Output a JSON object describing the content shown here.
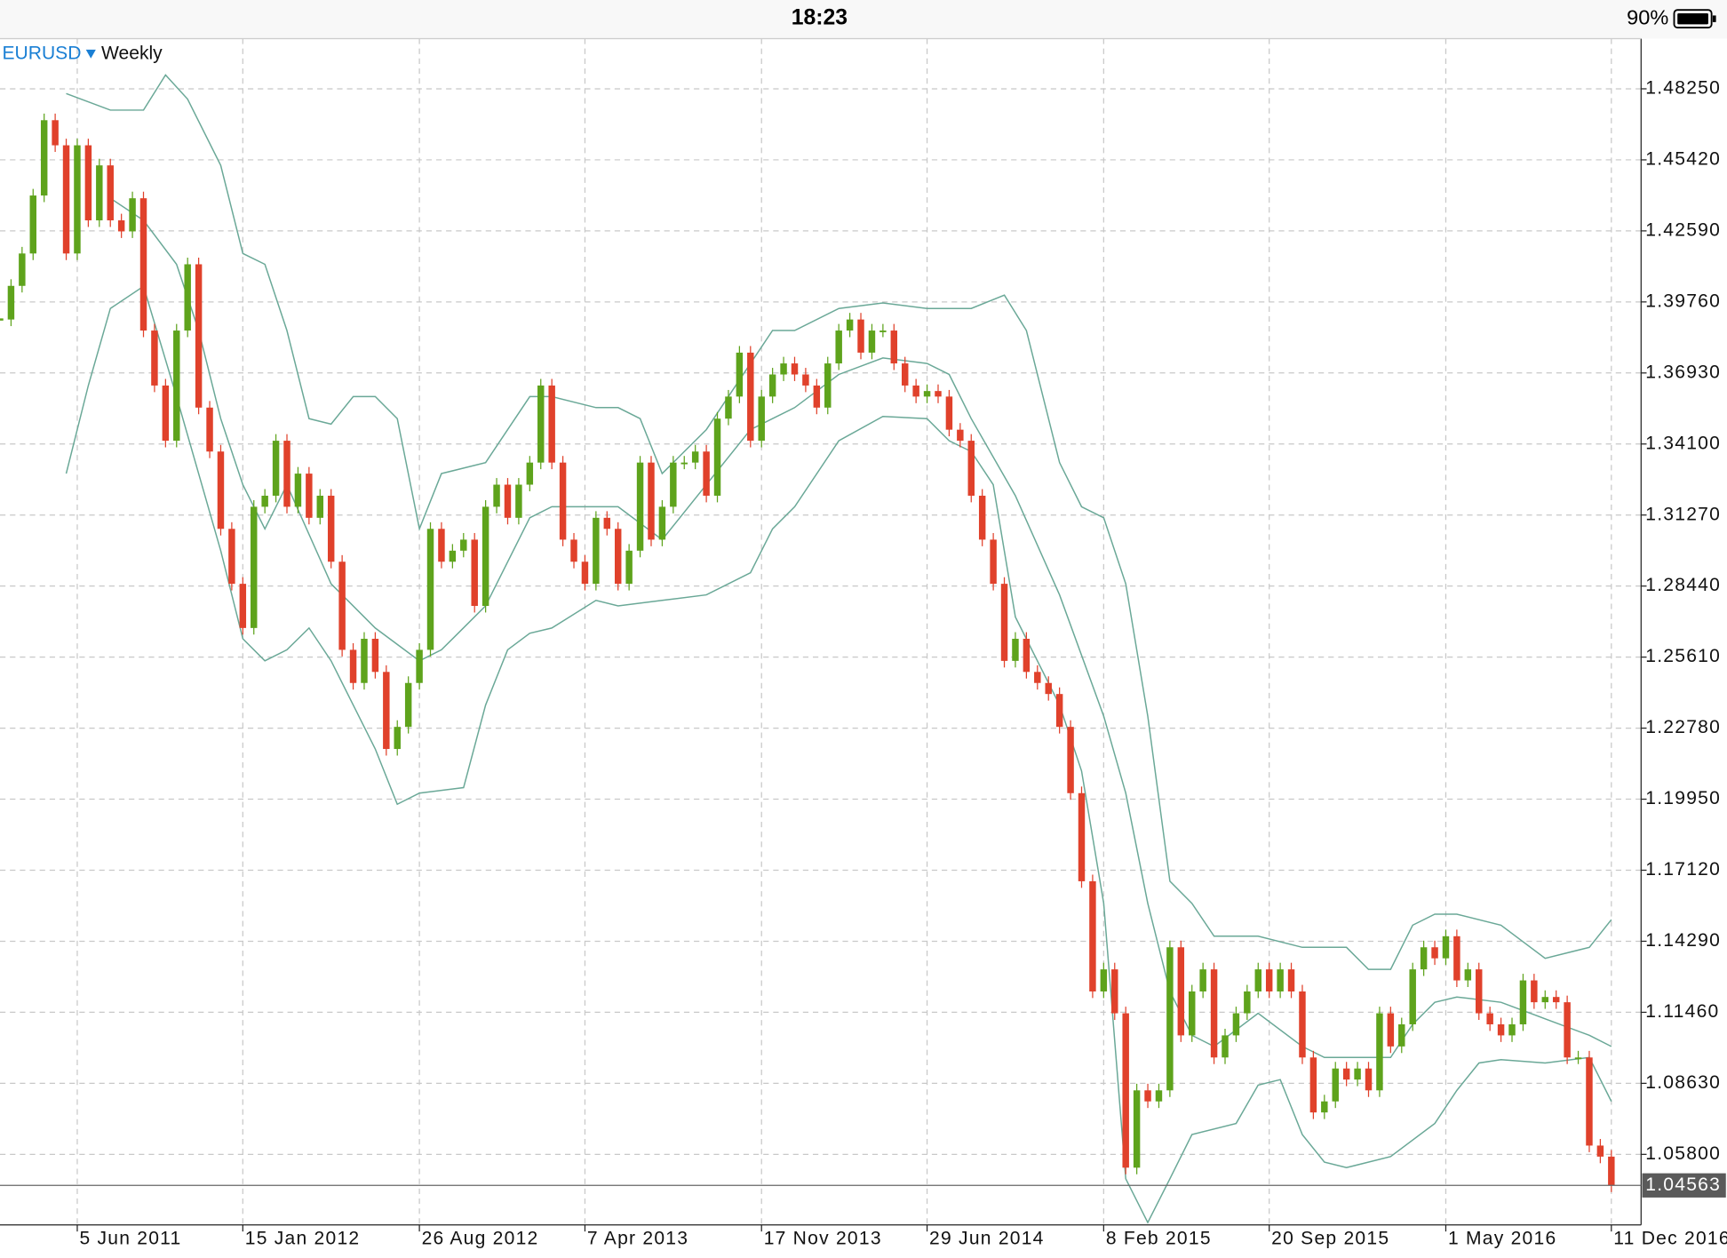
{
  "status_bar": {
    "time": "18:23",
    "battery": "90%"
  },
  "chart_data": {
    "type": "candlestick",
    "symbol": "EURUSD",
    "timeframe": "Weekly",
    "categories": [
      null,
      null,
      null,
      null,
      null,
      null,
      null,
      "5 Jun 2011",
      null,
      null,
      null,
      null,
      null,
      null,
      null,
      null,
      null,
      null,
      null,
      null,
      null,
      null,
      "15 Jan 2012",
      null,
      null,
      null,
      null,
      null,
      null,
      null,
      null,
      null,
      null,
      null,
      null,
      null,
      null,
      null,
      "26 Aug 2012",
      null,
      null,
      null,
      null,
      null,
      null,
      null,
      null,
      null,
      null,
      null,
      null,
      null,
      null,
      "7 Apr 2013",
      null,
      null,
      null,
      null,
      null,
      null,
      null,
      null,
      null,
      null,
      null,
      null,
      null,
      null,
      null,
      "17 Nov 2013",
      null,
      null,
      null,
      null,
      null,
      null,
      null,
      null,
      null,
      null,
      null,
      null,
      null,
      null,
      "29 Jun 2014",
      null,
      null,
      null,
      null,
      null,
      null,
      null,
      null,
      null,
      null,
      null,
      null,
      null,
      null,
      null,
      "8 Feb 2015",
      null,
      null,
      null,
      null,
      null,
      null,
      null,
      null,
      null,
      null,
      null,
      null,
      null,
      null,
      "20 Sep 2015",
      null,
      null,
      null,
      null,
      null,
      null,
      null,
      null,
      null,
      null,
      null,
      null,
      null,
      null,
      null,
      "1 May 2016",
      null,
      null,
      null,
      null,
      null,
      null,
      null,
      null,
      null,
      null,
      null,
      null,
      null,
      null,
      "11 Dec 2016"
    ],
    "values": [
      1.3906,
      1.404,
      1.4169,
      1.44,
      1.47,
      1.46,
      1.4169,
      1.46,
      1.4301,
      1.452,
      1.4301,
      1.4257,
      1.4389,
      1.3862,
      1.3643,
      1.3423,
      1.3862,
      1.4126,
      1.3555,
      1.338,
      1.3072,
      1.2853,
      1.2677,
      1.316,
      1.3204,
      1.3423,
      1.316,
      1.3292,
      1.3116,
      1.3204,
      1.2941,
      1.259,
      1.2458,
      1.2634,
      1.2502,
      1.2195,
      1.2283,
      1.2458,
      1.259,
      1.3072,
      1.2941,
      1.2985,
      1.3029,
      1.2765,
      1.316,
      1.3248,
      1.3116,
      1.3248,
      1.3336,
      1.3643,
      1.3336,
      1.3029,
      1.2941,
      1.2853,
      1.3116,
      1.3072,
      1.2853,
      1.2985,
      1.3336,
      1.3029,
      1.316,
      1.3336,
      1.3336,
      1.338,
      1.3204,
      1.3511,
      1.3599,
      1.3774,
      1.3423,
      1.3599,
      1.3687,
      1.3731,
      1.3687,
      1.3643,
      1.3555,
      1.3731,
      1.3862,
      1.3906,
      1.3774,
      1.3862,
      1.3862,
      1.3731,
      1.3643,
      1.3599,
      1.3621,
      1.3599,
      1.3467,
      1.3423,
      1.3204,
      1.3029,
      1.2853,
      1.2546,
      1.2634,
      1.2502,
      1.2458,
      1.2414,
      1.2283,
      1.2019,
      1.1668,
      1.1229,
      1.1317,
      1.1142,
      1.0527,
      1.0835,
      1.0791,
      1.0835,
      1.1405,
      1.1054,
      1.1229,
      1.1317,
      1.0966,
      1.1054,
      1.1142,
      1.1229,
      1.1317,
      1.1229,
      1.1317,
      1.1229,
      1.0966,
      1.0747,
      1.0791,
      1.0922,
      1.0878,
      1.0922,
      1.0835,
      1.1142,
      1.101,
      1.1098,
      1.1317,
      1.1405,
      1.1361,
      1.1449,
      1.1273,
      1.1317,
      1.1142,
      1.1098,
      1.1054,
      1.1098,
      1.1273,
      1.1186,
      1.1207,
      1.1186,
      1.0966,
      1.0966,
      1.0615,
      1.0571,
      1.0456
    ],
    "up_color": "#5ea31c",
    "down_color": "#e0412b",
    "bands": [
      {
        "color": "#6aa897",
        "x": [
          6,
          10,
          13,
          15,
          17,
          20,
          22,
          24,
          26,
          28,
          30,
          32,
          34,
          36,
          38,
          40,
          44,
          48,
          50,
          54,
          56,
          58,
          60,
          64,
          68,
          70,
          72,
          76,
          80,
          84,
          88,
          91,
          93,
          96,
          98,
          100,
          102,
          104,
          106,
          108,
          110,
          114,
          118,
          122,
          124,
          126,
          128,
          130,
          132,
          136,
          140,
          144,
          146
        ],
        "values": [
          1.4806,
          1.474,
          1.474,
          1.488,
          1.4784,
          1.452,
          1.4169,
          1.4126,
          1.3862,
          1.3511,
          1.3489,
          1.3599,
          1.3599,
          1.3511,
          1.3072,
          1.3292,
          1.3336,
          1.3599,
          1.3599,
          1.3555,
          1.3555,
          1.3511,
          1.3292,
          1.3467,
          1.3731,
          1.3862,
          1.3862,
          1.395,
          1.3972,
          1.395,
          1.395,
          1.4003,
          1.3862,
          1.3336,
          1.316,
          1.3116,
          1.2853,
          1.2326,
          1.1668,
          1.158,
          1.1449,
          1.1449,
          1.1405,
          1.1405,
          1.1317,
          1.1317,
          1.1493,
          1.1537,
          1.1537,
          1.1493,
          1.1361,
          1.1405,
          1.1515
        ]
      },
      {
        "color": "#6aa897",
        "x": [
          10,
          13,
          16,
          18,
          20,
          22,
          24,
          26,
          30,
          34,
          38,
          40,
          44,
          48,
          50,
          54,
          56,
          60,
          64,
          68,
          70,
          72,
          76,
          80,
          84,
          86,
          88,
          92,
          96,
          100,
          102,
          104,
          106,
          108,
          110,
          114,
          118,
          120,
          124,
          126,
          128,
          130,
          132,
          136,
          140,
          144,
          146
        ],
        "values": [
          1.4389,
          1.4301,
          1.4126,
          1.3862,
          1.3511,
          1.3248,
          1.3072,
          1.3248,
          1.2853,
          1.2677,
          1.2546,
          1.259,
          1.2765,
          1.3116,
          1.316,
          1.316,
          1.316,
          1.3029,
          1.3248,
          1.3467,
          1.3511,
          1.3555,
          1.3687,
          1.3753,
          1.3731,
          1.3687,
          1.3511,
          1.3204,
          1.2809,
          1.2326,
          1.2019,
          1.158,
          1.1229,
          1.1054,
          1.101,
          1.1142,
          1.101,
          1.0966,
          1.0966,
          1.0966,
          1.1098,
          1.1186,
          1.1207,
          1.1186,
          1.112,
          1.1054,
          1.101
        ]
      },
      {
        "color": "#6aa897",
        "x": [
          6,
          8,
          10,
          13,
          16,
          20,
          22,
          24,
          26,
          28,
          30,
          32,
          34,
          36,
          38,
          42,
          44,
          46,
          48,
          50,
          54,
          56,
          60,
          64,
          68,
          70,
          72,
          76,
          80,
          84,
          86,
          88,
          90,
          92,
          96,
          98,
          100,
          102,
          104,
          106,
          108,
          112,
          114,
          116,
          118,
          120,
          122,
          126,
          130,
          132,
          134,
          136,
          140,
          144,
          146
        ],
        "values": [
          1.3292,
          1.3643,
          1.395,
          1.4038,
          1.3599,
          1.2985,
          1.2634,
          1.2546,
          1.259,
          1.2677,
          1.2546,
          1.237,
          1.2195,
          1.1975,
          1.2019,
          1.2041,
          1.237,
          1.259,
          1.2656,
          1.2677,
          1.2787,
          1.2765,
          1.2787,
          1.2809,
          1.2897,
          1.3072,
          1.316,
          1.3423,
          1.352,
          1.3511,
          1.3423,
          1.338,
          1.3248,
          1.2721,
          1.237,
          1.2107,
          1.158,
          1.0483,
          1.0308,
          1.0483,
          1.0659,
          1.0703,
          1.0856,
          1.0878,
          1.0659,
          1.0549,
          1.0527,
          1.0571,
          1.0703,
          1.0835,
          1.0944,
          1.0957,
          1.0944,
          1.0966,
          1.0791
        ]
      }
    ],
    "last_price": {
      "value": 1.04563,
      "label": "1.04563"
    },
    "ylim": [
      1.0299,
      1.5025
    ],
    "yticks": [
      {
        "value": 1.4825,
        "label": "1.48250"
      },
      {
        "value": 1.4542,
        "label": "1.45420"
      },
      {
        "value": 1.4259,
        "label": "1.42590"
      },
      {
        "value": 1.3976,
        "label": "1.39760"
      },
      {
        "value": 1.3693,
        "label": "1.36930"
      },
      {
        "value": 1.341,
        "label": "1.34100"
      },
      {
        "value": 1.3127,
        "label": "1.31270"
      },
      {
        "value": 1.2844,
        "label": "1.28440"
      },
      {
        "value": 1.2561,
        "label": "1.25610"
      },
      {
        "value": 1.2278,
        "label": "1.22780"
      },
      {
        "value": 1.1995,
        "label": "1.19950"
      },
      {
        "value": 1.1712,
        "label": "1.17120"
      },
      {
        "value": 1.1429,
        "label": "1.14290"
      },
      {
        "value": 1.1146,
        "label": "1.11460"
      },
      {
        "value": 1.0863,
        "label": "1.08630"
      },
      {
        "value": 1.058,
        "label": "1.05800"
      }
    ],
    "grid": true
  }
}
